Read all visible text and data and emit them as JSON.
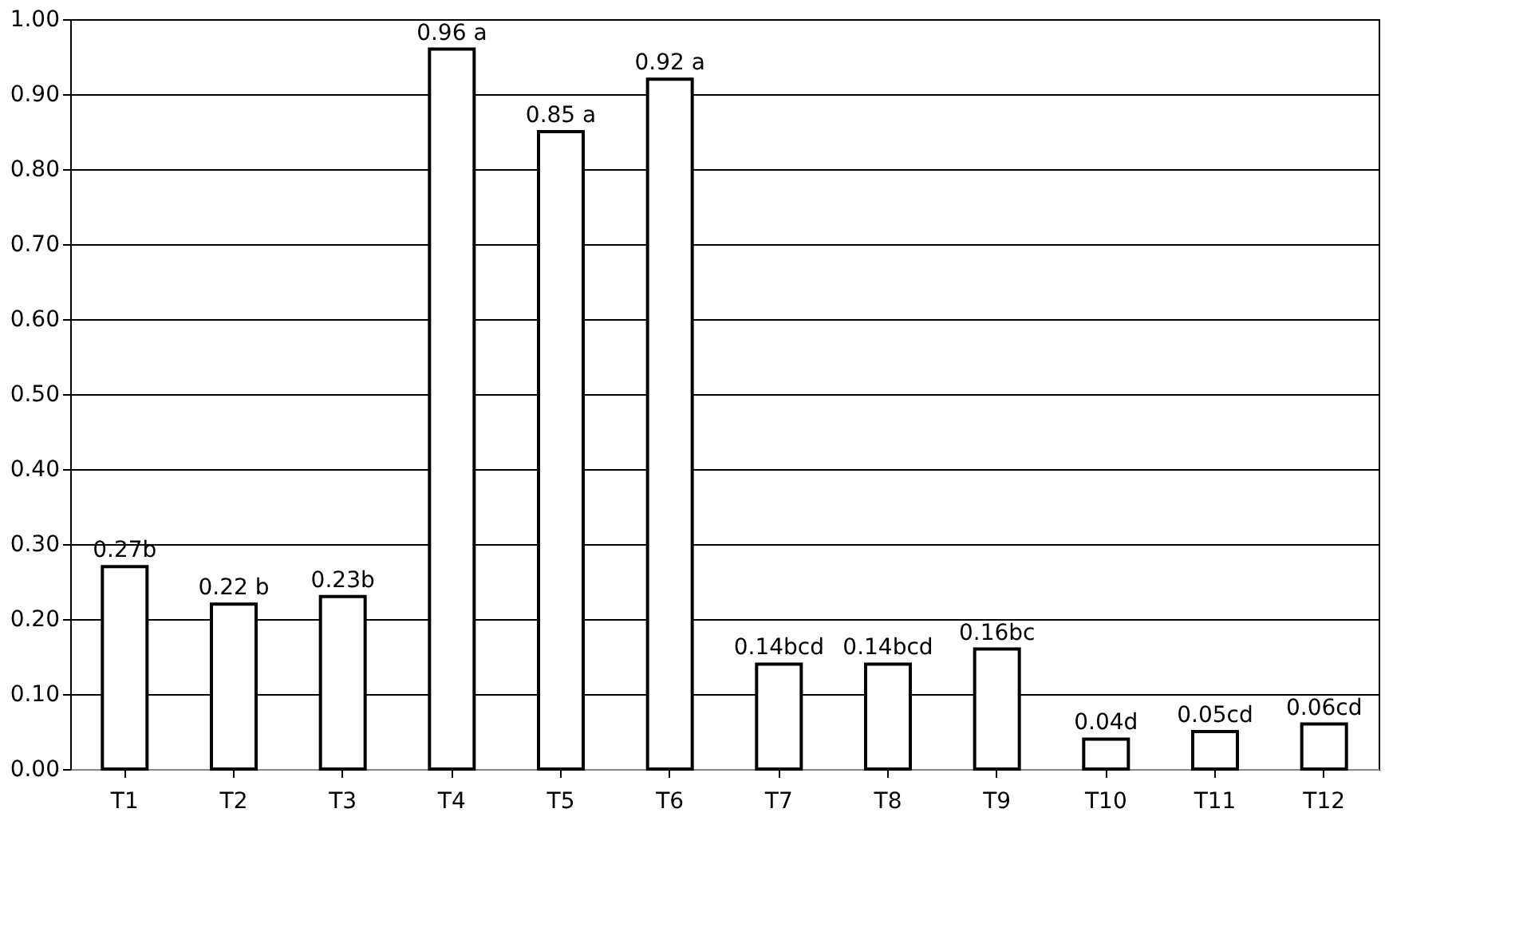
{
  "chart_data": {
    "type": "bar",
    "categories": [
      "T1",
      "T2",
      "T3",
      "T4",
      "T5",
      "T6",
      "T7",
      "T8",
      "T9",
      "T10",
      "T11",
      "T12"
    ],
    "values": [
      0.27,
      0.22,
      0.23,
      0.96,
      0.85,
      0.92,
      0.14,
      0.14,
      0.16,
      0.04,
      0.05,
      0.06
    ],
    "value_labels": [
      "0.27b",
      "0.22 b",
      "0.23b",
      "0.96 a",
      "0.85 a",
      "0.92 a",
      "0.14bcd",
      "0.14bcd",
      "0.16bc",
      "0.04d",
      "0.05cd",
      "0.06cd"
    ],
    "color": "#ffffff",
    "ylim": [
      0,
      1.0
    ],
    "yticks": [
      {
        "value": 0,
        "label": "0.00"
      },
      {
        "value": 0.1,
        "label": "0.10"
      },
      {
        "value": 0.2,
        "label": "0.20"
      },
      {
        "value": 0.3,
        "label": "0.30"
      },
      {
        "value": 0.4,
        "label": "0.40"
      },
      {
        "value": 0.5,
        "label": "0.50"
      },
      {
        "value": 0.6,
        "label": "0.60"
      },
      {
        "value": 0.7,
        "label": "0.70"
      },
      {
        "value": 0.8,
        "label": "0.80"
      },
      {
        "value": 0.9,
        "label": "0.90"
      },
      {
        "value": 1.0,
        "label": "1.00"
      }
    ],
    "grid": "y"
  }
}
